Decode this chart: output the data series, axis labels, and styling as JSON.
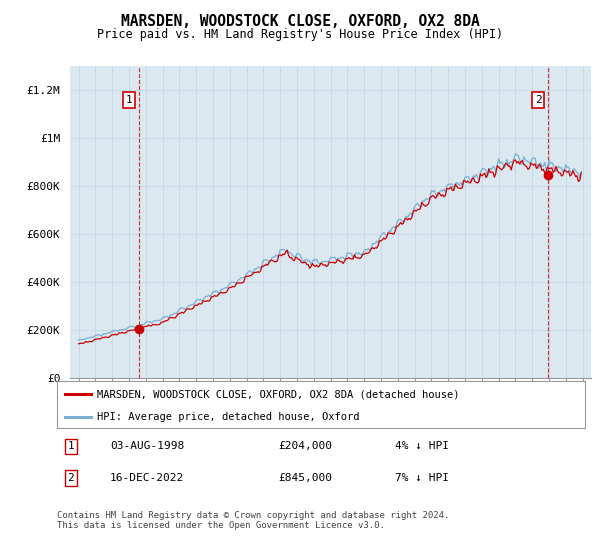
{
  "title": "MARSDEN, WOODSTOCK CLOSE, OXFORD, OX2 8DA",
  "subtitle": "Price paid vs. HM Land Registry's House Price Index (HPI)",
  "ylabel_ticks": [
    "£0",
    "£200K",
    "£400K",
    "£600K",
    "£800K",
    "£1M",
    "£1.2M"
  ],
  "ytick_vals": [
    0,
    200000,
    400000,
    600000,
    800000,
    1000000,
    1200000
  ],
  "ylim": [
    0,
    1300000
  ],
  "xlim_start": 1994.5,
  "xlim_end": 2025.5,
  "sale1_x": 1998.58,
  "sale1_y": 204000,
  "sale2_x": 2022.96,
  "sale2_y": 845000,
  "legend_line1": "MARSDEN, WOODSTOCK CLOSE, OXFORD, OX2 8DA (detached house)",
  "legend_line2": "HPI: Average price, detached house, Oxford",
  "hpi_color": "#7ab0d4",
  "price_color": "#cc0000",
  "sale_dot_color": "#cc0000",
  "marker_box_color": "#cc0000",
  "grid_color": "#c8d8e8",
  "bg_color": "#dce8f0",
  "plot_bg": "#dce8f0",
  "footer": "Contains HM Land Registry data © Crown copyright and database right 2024.\nThis data is licensed under the Open Government Licence v3.0."
}
